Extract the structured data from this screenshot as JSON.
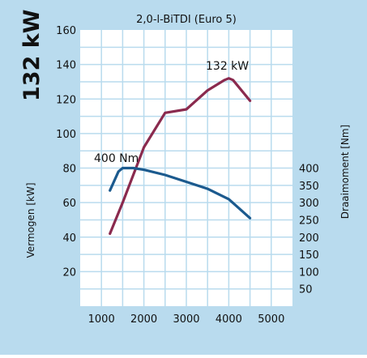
{
  "colors": {
    "panel": "#b9dbee",
    "plot_bg": "#ffffff",
    "grid": "#b9dbee",
    "power": "#8a2a4e",
    "torque": "#1b5a8e"
  },
  "chart_data": {
    "type": "line",
    "title": "2,0-l-BiTDI (Euro 5)",
    "badge": "132 kW",
    "ylabel_left": "Vermogen [kW]",
    "ylabel_right": "Draaimoment [Nm]",
    "xlabel": "",
    "xlim": [
      500,
      5500
    ],
    "ylim_left": [
      0,
      160
    ],
    "ylim_right": [
      0,
      800
    ],
    "x_ticks": [
      1000,
      2000,
      3000,
      4000,
      5000
    ],
    "y_ticks_left": [
      20,
      40,
      60,
      80,
      100,
      120,
      140,
      160
    ],
    "y_ticks_right": [
      50,
      100,
      150,
      200,
      250,
      300,
      350,
      400
    ],
    "grid": true,
    "series": [
      {
        "name": "132 kW",
        "axis": "left",
        "x": [
          1200,
          1500,
          2000,
          2500,
          3000,
          3500,
          3900,
          4000,
          4100,
          4500
        ],
        "y": [
          42,
          60,
          92,
          112,
          114,
          125,
          131,
          132,
          131,
          119
        ]
      },
      {
        "name": "400 Nm",
        "axis": "right",
        "x": [
          1200,
          1400,
          1500,
          1750,
          2000,
          2500,
          3000,
          3500,
          4000,
          4500
        ],
        "y": [
          335,
          390,
          400,
          400,
          395,
          380,
          360,
          340,
          310,
          255
        ]
      }
    ]
  }
}
